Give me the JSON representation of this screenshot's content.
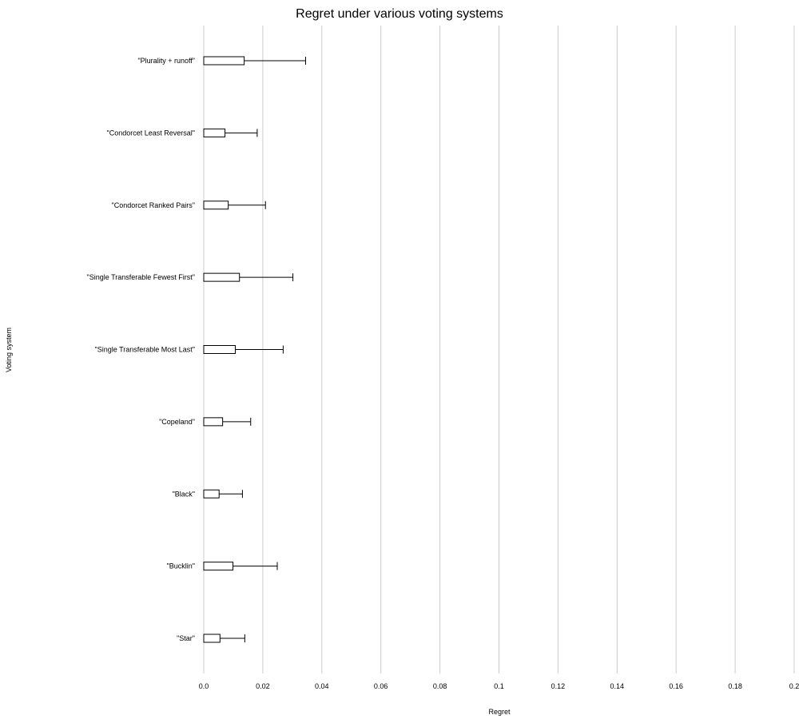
{
  "chart_data": {
    "type": "bar",
    "orientation": "horizontal",
    "title": "Regret under various voting systems",
    "xlabel": "Regret",
    "ylabel": "Voting system",
    "xlim": [
      0,
      0.2
    ],
    "x_ticks": [
      "0.0",
      "0.02",
      "0.04",
      "0.06",
      "0.08",
      "0.1",
      "0.12",
      "0.14",
      "0.16",
      "0.18",
      "0.2"
    ],
    "x_tick_values": [
      0,
      0.02,
      0.04,
      0.06,
      0.08,
      0.1,
      0.12,
      0.14,
      0.16,
      0.18,
      0.2
    ],
    "grid": "vertical",
    "legend": "none",
    "categories": [
      "\"Plurality + runoff\"",
      "\"Condorcet Least Reversal\"",
      "\"Condorcet Ranked Pairs\"",
      "\"Single Transferable Fewest First\"",
      "\"Single Transferable Most Last\"",
      "\"Copeland\"",
      "\"Black\"",
      "\"Bucklin\"",
      "\"Star\""
    ],
    "values": [
      0.0137,
      0.0072,
      0.0083,
      0.0121,
      0.0107,
      0.0064,
      0.0052,
      0.0099,
      0.0055
    ],
    "error_upper": [
      0.0345,
      0.0181,
      0.0209,
      0.0302,
      0.0269,
      0.0159,
      0.0131,
      0.0249,
      0.0139
    ],
    "colors": {
      "bar_fill": "#ffffff",
      "bar_stroke": "#000000",
      "grid": "#cccccc",
      "error_bar": "#000000"
    }
  }
}
